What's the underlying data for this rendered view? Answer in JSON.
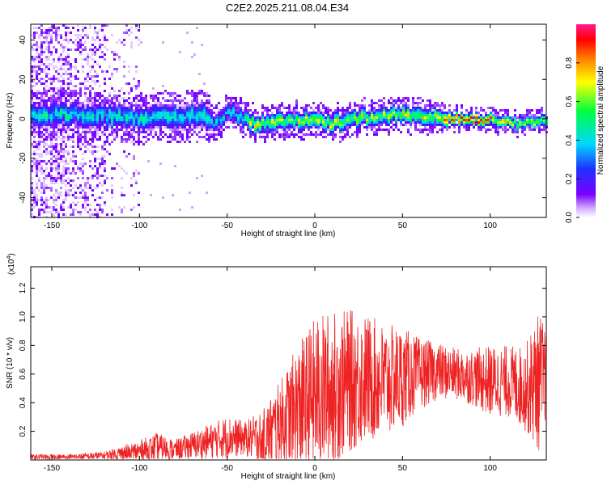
{
  "title": "C2E2.2025.211.08.04.E34",
  "chart_data": [
    {
      "type": "heatmap",
      "xlabel": "Height of straight line (km)",
      "ylabel": "Frequency (Hz)",
      "xlim": [
        -162,
        132
      ],
      "ylim": [
        -50,
        48
      ],
      "x_ticks": [
        -150,
        -100,
        -50,
        0,
        50,
        100
      ],
      "y_ticks": [
        -40,
        -20,
        0,
        20,
        40
      ],
      "colorbar": {
        "label": "Normalized spectral amplitude",
        "range": [
          0,
          1
        ],
        "ticks": [
          0.0,
          0.2,
          0.4,
          0.6,
          0.8
        ],
        "colormap": [
          "#ffffff",
          "#7a00ff",
          "#2020ff",
          "#00e0ff",
          "#00ff40",
          "#ffff00",
          "#ff8000",
          "#ff0000",
          "#ff0080"
        ]
      },
      "ridge": [
        {
          "x": -140,
          "freq": 3
        },
        {
          "x": -120,
          "freq": 2
        },
        {
          "x": -100,
          "freq": 1
        },
        {
          "x": -80,
          "freq": 1
        },
        {
          "x": -65,
          "freq": 3
        },
        {
          "x": -58,
          "freq": -3
        },
        {
          "x": -50,
          "freq": 5
        },
        {
          "x": -35,
          "freq": -2
        },
        {
          "x": -20,
          "freq": -1
        },
        {
          "x": 0,
          "freq": 0
        },
        {
          "x": 10,
          "freq": -2
        },
        {
          "x": 25,
          "freq": 1
        },
        {
          "x": 50,
          "freq": 3
        },
        {
          "x": 75,
          "freq": 1
        },
        {
          "x": 100,
          "freq": 0
        },
        {
          "x": 115,
          "freq": -2
        },
        {
          "x": 130,
          "freq": 0
        }
      ],
      "grid": false
    },
    {
      "type": "line",
      "xlabel": "Height of straight line (km)",
      "ylabel": "SNR (10 * v/v)",
      "y_multiplier": "(x10",
      "y_multiplier_exp": "4",
      "y_multiplier_close": ")",
      "xlim": [
        -162,
        132
      ],
      "ylim": [
        0,
        1.35
      ],
      "x_ticks": [
        -150,
        -100,
        -50,
        0,
        50,
        100
      ],
      "y_ticks": [
        0.2,
        0.4,
        0.6,
        0.8,
        1.0,
        1.2
      ],
      "series": [
        {
          "color": "#ee2222",
          "envelope_x": [
            -162,
            -140,
            -120,
            -100,
            -90,
            -80,
            -60,
            -50,
            -40,
            -30,
            -20,
            -10,
            0,
            10,
            20,
            30,
            40,
            50,
            60,
            70,
            80,
            90,
            100,
            110,
            120,
            128,
            132
          ],
          "envelope_mean": [
            0.02,
            0.02,
            0.03,
            0.06,
            0.09,
            0.07,
            0.13,
            0.16,
            0.15,
            0.15,
            0.25,
            0.35,
            0.45,
            0.5,
            0.55,
            0.57,
            0.55,
            0.58,
            0.6,
            0.62,
            0.6,
            0.58,
            0.55,
            0.55,
            0.5,
            0.55,
            0.6
          ],
          "envelope_amp": [
            0.02,
            0.02,
            0.03,
            0.08,
            0.1,
            0.07,
            0.12,
            0.15,
            0.12,
            0.2,
            0.3,
            0.45,
            0.55,
            0.55,
            0.5,
            0.45,
            0.4,
            0.35,
            0.25,
            0.2,
            0.18,
            0.2,
            0.25,
            0.25,
            0.3,
            0.5,
            0.3
          ]
        }
      ],
      "grid": false
    }
  ]
}
